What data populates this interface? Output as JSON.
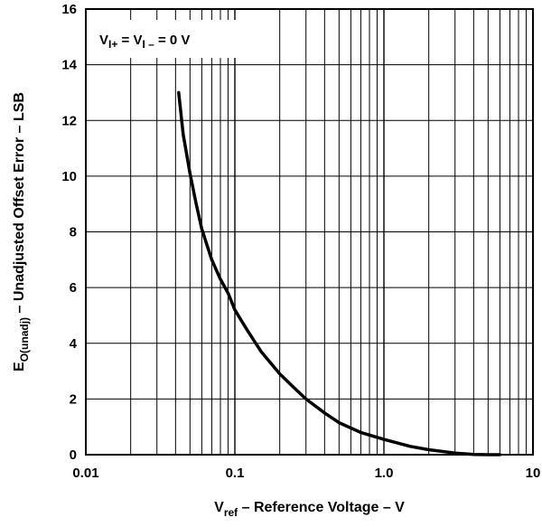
{
  "chart_data": {
    "type": "line",
    "title": "",
    "x_scale": "log",
    "xlim": [
      0.01,
      10
    ],
    "ylim": [
      0,
      16
    ],
    "grid": true,
    "x_ticks": [
      "0.01",
      "0.1",
      "1.0",
      "10"
    ],
    "y_ticks": [
      "0",
      "2",
      "4",
      "6",
      "8",
      "10",
      "12",
      "14",
      "16"
    ],
    "xlabel": {
      "symbol": "V",
      "subscript": "ref",
      "text": " – Reference Voltage – V"
    },
    "ylabel": {
      "symbol": "E",
      "subscript": "O(unadj)",
      "text": " – Unadjusted Offset Error – LSB"
    },
    "annotation": {
      "v1": "V",
      "s1": "I+",
      "eq": " = ",
      "v2": "V",
      "s2": "I –",
      "rest": " = 0 V"
    },
    "series": [
      {
        "x": [
          0.042,
          0.045,
          0.05,
          0.055,
          0.06,
          0.07,
          0.08,
          0.09,
          0.1,
          0.12,
          0.15,
          0.2,
          0.25,
          0.3,
          0.4,
          0.5,
          0.7,
          1.0,
          1.5,
          2.0,
          3.0,
          4.0,
          5.0,
          6.0
        ],
        "y": [
          13.0,
          11.5,
          10.1,
          9.0,
          8.1,
          7.0,
          6.3,
          5.8,
          5.2,
          4.5,
          3.7,
          2.9,
          2.4,
          2.0,
          1.5,
          1.15,
          0.8,
          0.55,
          0.3,
          0.18,
          0.06,
          0.01,
          0.0,
          0.0
        ]
      }
    ]
  }
}
